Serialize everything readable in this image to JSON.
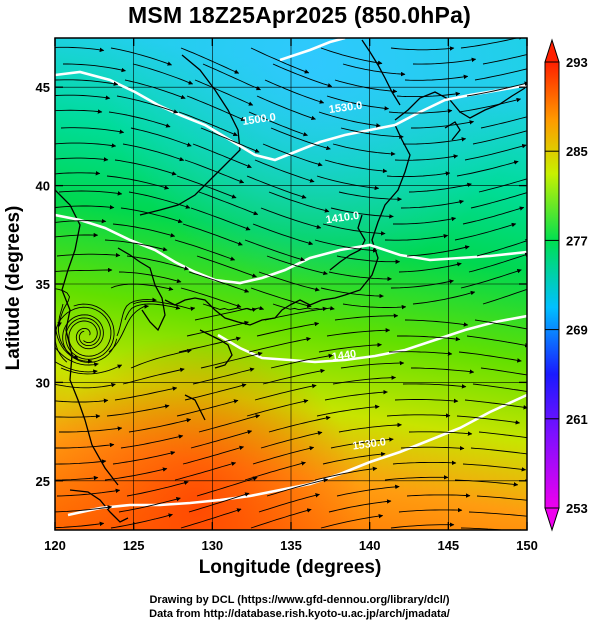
{
  "title": "MSM 18Z25Apr2025 (850.0hPa)",
  "xlabel": "Longitude (degrees)",
  "ylabel": "Latitude  (degrees)",
  "credits": {
    "line1": "Drawing by DCL (https://www.gfd-dennou.org/library/dcl/)",
    "line2": "Data from http://database.rish.kyoto-u.ac.jp/arch/jmadata/"
  },
  "axes": {
    "x_ticks": [
      120,
      125,
      130,
      135,
      140,
      145,
      150
    ],
    "y_ticks": [
      25,
      30,
      35,
      40,
      45
    ],
    "xlim": [
      120,
      150
    ],
    "ylim": [
      22.5,
      47.5
    ]
  },
  "colorbar": {
    "ticks": [
      293,
      285,
      277,
      269,
      261,
      253
    ],
    "range": [
      253,
      293
    ],
    "colors": [
      "#ee00ee",
      "#1a1aff",
      "#00c0ff",
      "#00e050",
      "#c8f000",
      "#ff9a00",
      "#ff2000"
    ]
  },
  "contour_labels": [
    {
      "text": "1500.0",
      "lon": 133.0,
      "lat": 43.2
    },
    {
      "text": "1530.0",
      "lon": 138.5,
      "lat": 43.8
    },
    {
      "text": "1410.0",
      "lon": 138.3,
      "lat": 38.2
    },
    {
      "text": "1440",
      "lon": 138.4,
      "lat": 31.2
    },
    {
      "text": "1530.0",
      "lon": 140.0,
      "lat": 26.7
    }
  ],
  "features": {
    "cyclone_center": {
      "lon": 122.0,
      "lat": 32.4
    }
  }
}
